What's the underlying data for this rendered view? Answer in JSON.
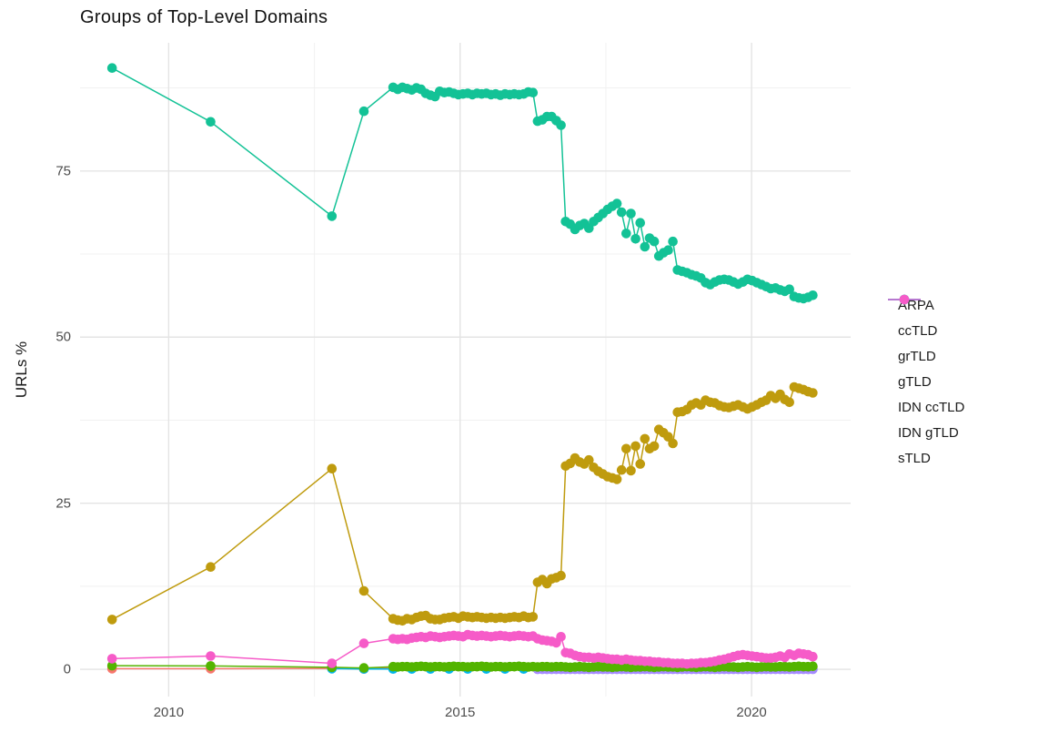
{
  "title": "Groups of Top-Level Domains",
  "chart_data": {
    "type": "line",
    "title": "Groups of Top-Level Domains",
    "xlabel": "",
    "ylabel": "URLs %",
    "xlim": [
      2008.48,
      2021.7
    ],
    "ylim": [
      -4.1,
      94.3
    ],
    "x_major_ticks": [
      2010,
      2015,
      2020
    ],
    "x_minor_ticks": [
      2012.5,
      2017.5
    ],
    "y_major_ticks": [
      0,
      25,
      50,
      75
    ],
    "y_minor_ticks": [
      12.5,
      37.5,
      62.5,
      87.5
    ],
    "grid": "major+minor on white, ggplot minimal style",
    "legend_position": "right",
    "legend_order": [
      "ARPA",
      "ccTLD",
      "grTLD",
      "gTLD",
      "IDN ccTLD",
      "IDN gTLD",
      "sTLD"
    ],
    "x_dense": [
      2013.85,
      2013.93,
      2014.01,
      2014.09,
      2014.17,
      2014.25,
      2014.33,
      2014.41,
      2014.49,
      2014.57,
      2014.65,
      2014.73,
      2014.81,
      2014.89,
      2014.97,
      2015.05,
      2015.13,
      2015.21,
      2015.29,
      2015.37,
      2015.45,
      2015.53,
      2015.61,
      2015.69,
      2015.77,
      2015.85,
      2015.93,
      2016.01,
      2016.09,
      2016.17,
      2016.25,
      2016.33,
      2016.41,
      2016.49,
      2016.57,
      2016.65,
      2016.73,
      2016.81,
      2016.89,
      2016.97,
      2017.05,
      2017.13,
      2017.21,
      2017.29,
      2017.37,
      2017.45,
      2017.53,
      2017.61,
      2017.69,
      2017.77,
      2017.85,
      2017.93,
      2018.01,
      2018.09,
      2018.17,
      2018.25,
      2018.33,
      2018.41,
      2018.49,
      2018.57,
      2018.65,
      2018.73,
      2018.81,
      2018.89,
      2018.97,
      2019.05,
      2019.13,
      2019.21,
      2019.29,
      2019.37,
      2019.45,
      2019.53,
      2019.61,
      2019.69,
      2019.77,
      2019.85,
      2019.93,
      2020.01,
      2020.09,
      2020.17,
      2020.25,
      2020.33,
      2020.41,
      2020.49,
      2020.57,
      2020.65,
      2020.73,
      2020.81,
      2020.89,
      2020.97,
      2021.05
    ],
    "series": [
      {
        "name": "ARPA",
        "color": "#f8766d",
        "points": [
          [
            2009.03,
            0.1
          ],
          [
            2010.72,
            0.1
          ],
          [
            2012.8,
            0.15
          ],
          [
            2013.35,
            0.05
          ],
          [
            2013.85,
            0.3
          ],
          [
            2014.17,
            0.3
          ],
          [
            2014.49,
            0.3
          ],
          [
            2014.81,
            0.3
          ],
          [
            2015.13,
            0.3
          ],
          [
            2015.45,
            0.3
          ],
          [
            2015.77,
            0.3
          ],
          [
            2016.09,
            0.3
          ],
          [
            2016.41,
            0.3
          ],
          [
            2016.73,
            0.3
          ],
          [
            2017.05,
            0.3
          ],
          [
            2017.37,
            0.3
          ],
          [
            2017.69,
            0.3
          ],
          [
            2018.01,
            0.3
          ],
          [
            2018.33,
            0.3
          ],
          [
            2018.65,
            0.3
          ],
          [
            2018.97,
            0.3
          ],
          [
            2019.29,
            0.3
          ],
          [
            2019.61,
            0.3
          ],
          [
            2019.93,
            0.3
          ],
          [
            2020.25,
            0.3
          ],
          [
            2020.57,
            0.3
          ],
          [
            2020.89,
            0.3
          ],
          [
            2021.05,
            0.3
          ]
        ]
      },
      {
        "name": "IDN ccTLD",
        "color": "#00b6eb",
        "points": [
          [
            2012.8,
            0.1
          ],
          [
            2013.35,
            0.05
          ],
          [
            2013.85,
            0.05
          ],
          [
            2014.17,
            0.05
          ],
          [
            2014.49,
            0.05
          ],
          [
            2014.81,
            0.05
          ],
          [
            2015.13,
            0.05
          ],
          [
            2015.45,
            0.05
          ],
          [
            2015.77,
            0.05
          ],
          [
            2016.09,
            0.05
          ],
          [
            2016.41,
            0.05
          ],
          [
            2016.73,
            0.05
          ],
          [
            2017.05,
            0.05
          ],
          [
            2017.37,
            0.05
          ],
          [
            2017.69,
            0.05
          ],
          [
            2018.01,
            0.05
          ],
          [
            2018.33,
            0.05
          ],
          [
            2018.65,
            0.05
          ],
          [
            2018.97,
            0.05
          ],
          [
            2019.29,
            0.05
          ],
          [
            2019.61,
            0.05
          ],
          [
            2019.93,
            0.05
          ],
          [
            2020.25,
            0.05
          ],
          [
            2020.57,
            0.05
          ],
          [
            2020.89,
            0.05
          ],
          [
            2021.05,
            0.05
          ]
        ]
      },
      {
        "name": "IDN gTLD",
        "color": "#a58aff",
        "x_dense_from": 31,
        "y_const": 0.0
      },
      {
        "name": "grTLD",
        "color": "#53b400",
        "prefix": [
          [
            2009.03,
            0.55
          ],
          [
            2010.72,
            0.5
          ],
          [
            2012.8,
            0.3
          ],
          [
            2013.35,
            0.2
          ]
        ],
        "y_dense": [
          0.4,
          0.35,
          0.4,
          0.4,
          0.35,
          0.4,
          0.45,
          0.4,
          0.35,
          0.4,
          0.4,
          0.35,
          0.4,
          0.45,
          0.4,
          0.4,
          0.35,
          0.4,
          0.4,
          0.45,
          0.4,
          0.35,
          0.4,
          0.4,
          0.35,
          0.4,
          0.4,
          0.45,
          0.4,
          0.35,
          0.4,
          0.35,
          0.4,
          0.4,
          0.35,
          0.4,
          0.4,
          0.35,
          0.3,
          0.35,
          0.4,
          0.35,
          0.3,
          0.35,
          0.4,
          0.35,
          0.35,
          0.3,
          0.35,
          0.4,
          0.35,
          0.3,
          0.35,
          0.35,
          0.4,
          0.35,
          0.3,
          0.35,
          0.4,
          0.35,
          0.35,
          0.3,
          0.35,
          0.4,
          0.35,
          0.3,
          0.35,
          0.4,
          0.35,
          0.3,
          0.35,
          0.4,
          0.35,
          0.35,
          0.3,
          0.35,
          0.4,
          0.35,
          0.3,
          0.35,
          0.4,
          0.35,
          0.35,
          0.4,
          0.4,
          0.35,
          0.4,
          0.45,
          0.4,
          0.4,
          0.45
        ]
      },
      {
        "name": "ccTLD",
        "color": "#bf9b0e",
        "prefix": [
          [
            2009.03,
            7.5
          ],
          [
            2010.72,
            15.4
          ],
          [
            2012.8,
            30.2
          ],
          [
            2013.35,
            11.8
          ]
        ],
        "y_dense": [
          7.6,
          7.4,
          7.3,
          7.6,
          7.5,
          7.8,
          8.0,
          8.1,
          7.6,
          7.5,
          7.5,
          7.7,
          7.8,
          7.9,
          7.7,
          8.0,
          7.9,
          7.8,
          7.9,
          7.8,
          7.7,
          7.8,
          7.7,
          7.8,
          7.7,
          7.8,
          7.9,
          7.8,
          8.0,
          7.8,
          7.9,
          13.1,
          13.5,
          12.9,
          13.6,
          13.8,
          14.1,
          30.6,
          31.0,
          31.8,
          31.2,
          30.9,
          31.5,
          30.4,
          29.8,
          29.4,
          29.0,
          28.8,
          28.6,
          30.0,
          33.2,
          29.9,
          33.6,
          30.9,
          34.7,
          33.2,
          33.6,
          36.1,
          35.6,
          35.0,
          34.0,
          38.7,
          38.8,
          39.1,
          39.8,
          40.1,
          39.8,
          40.5,
          40.2,
          40.1,
          39.7,
          39.5,
          39.4,
          39.6,
          39.8,
          39.5,
          39.2,
          39.5,
          39.8,
          40.2,
          40.5,
          41.2,
          40.8,
          41.4,
          40.6,
          40.2,
          42.5,
          42.3,
          42.1,
          41.8,
          41.6
        ]
      },
      {
        "name": "gTLD",
        "color": "#13c296",
        "prefix": [
          [
            2009.03,
            90.5
          ],
          [
            2010.72,
            82.4
          ],
          [
            2012.8,
            68.2
          ],
          [
            2013.35,
            84.0
          ]
        ],
        "y_dense": [
          87.6,
          87.3,
          87.6,
          87.4,
          87.2,
          87.5,
          87.3,
          86.7,
          86.4,
          86.2,
          87.0,
          86.8,
          86.9,
          86.7,
          86.5,
          86.6,
          86.7,
          86.5,
          86.7,
          86.6,
          86.7,
          86.5,
          86.6,
          86.4,
          86.6,
          86.5,
          86.6,
          86.5,
          86.6,
          86.9,
          86.8,
          82.5,
          82.7,
          83.2,
          83.2,
          82.6,
          81.9,
          67.4,
          67.0,
          66.2,
          66.8,
          67.1,
          66.4,
          67.4,
          68.0,
          68.6,
          69.2,
          69.7,
          70.1,
          68.8,
          65.6,
          68.6,
          64.8,
          67.2,
          63.6,
          64.9,
          64.4,
          62.2,
          62.7,
          63.1,
          64.4,
          60.1,
          59.9,
          59.7,
          59.4,
          59.2,
          58.9,
          58.2,
          57.9,
          58.3,
          58.6,
          58.7,
          58.6,
          58.3,
          58.0,
          58.3,
          58.7,
          58.5,
          58.2,
          57.9,
          57.6,
          57.3,
          57.4,
          57.1,
          56.9,
          57.2,
          56.1,
          55.9,
          55.8,
          56.0,
          56.3
        ]
      },
      {
        "name": "sTLD",
        "color": "#f65bc8",
        "prefix": [
          [
            2009.03,
            1.6
          ],
          [
            2010.72,
            2.0
          ],
          [
            2012.8,
            0.9
          ],
          [
            2013.35,
            3.9
          ]
        ],
        "y_dense": [
          4.6,
          4.5,
          4.6,
          4.5,
          4.7,
          4.8,
          4.9,
          4.8,
          5.0,
          4.9,
          4.8,
          4.9,
          5.0,
          5.1,
          5.0,
          4.9,
          5.2,
          5.1,
          5.0,
          5.1,
          5.0,
          4.9,
          5.0,
          5.1,
          5.0,
          4.9,
          5.0,
          5.1,
          5.0,
          4.9,
          5.0,
          4.6,
          4.4,
          4.3,
          4.2,
          4.0,
          4.9,
          2.5,
          2.4,
          2.1,
          1.9,
          1.8,
          1.8,
          1.7,
          1.8,
          1.7,
          1.6,
          1.5,
          1.5,
          1.4,
          1.5,
          1.4,
          1.3,
          1.3,
          1.2,
          1.2,
          1.1,
          1.1,
          1.0,
          1.0,
          0.9,
          0.9,
          0.9,
          0.8,
          0.9,
          0.9,
          1.0,
          1.0,
          1.1,
          1.2,
          1.4,
          1.5,
          1.7,
          1.9,
          2.1,
          2.2,
          2.1,
          2.0,
          1.9,
          1.8,
          1.7,
          1.7,
          1.8,
          2.0,
          1.8,
          2.3,
          2.1,
          2.4,
          2.3,
          2.2,
          1.9
        ]
      }
    ]
  }
}
